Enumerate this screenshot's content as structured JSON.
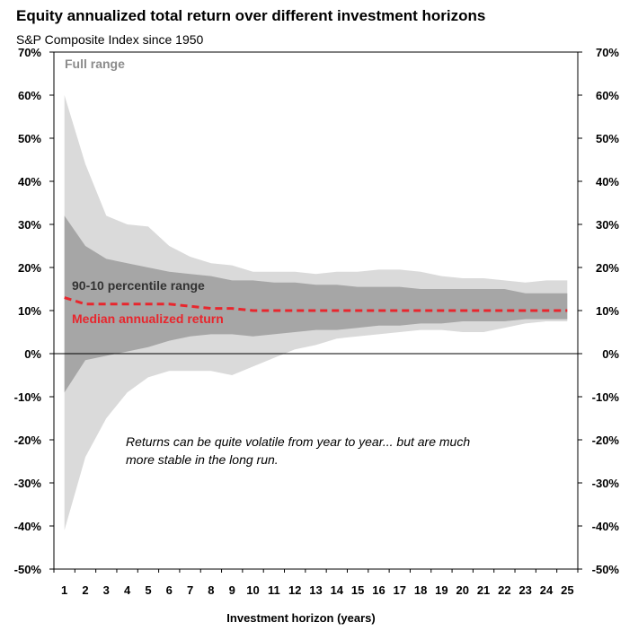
{
  "title": "Equity annualized total return over different investment horizons",
  "subtitle": "S&P Composite Index since 1950",
  "colors": {
    "full_range": "#dadada",
    "percentile_range": "#a6a6a6",
    "median": "#e8262d",
    "axis": "#000000",
    "full_range_label": "#8c8c8c",
    "percentile_label": "#333333"
  },
  "chart_data": {
    "type": "area",
    "title": "Equity annualized total return over different investment horizons",
    "subtitle": "S&P Composite Index since 1950",
    "xlabel": "Investment horizon (years)",
    "ylabel": "",
    "x": [
      1,
      2,
      3,
      4,
      5,
      6,
      7,
      8,
      9,
      10,
      11,
      12,
      13,
      14,
      15,
      16,
      17,
      18,
      19,
      20,
      21,
      22,
      23,
      24,
      25
    ],
    "ylim": [
      -50,
      70
    ],
    "yticks": [
      70,
      60,
      50,
      40,
      30,
      20,
      10,
      0,
      -10,
      -20,
      -30,
      -40,
      -50
    ],
    "ytick_labels": [
      "70%",
      "60%",
      "50%",
      "40%",
      "30%",
      "20%",
      "10%",
      "0%",
      "-10%",
      "-20%",
      "-30%",
      "-40%",
      "-50%"
    ],
    "xtick_labels": [
      "1",
      "2",
      "3",
      "4",
      "5",
      "6",
      "7",
      "8",
      "9",
      "10",
      "11",
      "12",
      "13",
      "14",
      "15",
      "16",
      "17",
      "18",
      "19",
      "20",
      "21",
      "22",
      "23",
      "24",
      "25"
    ],
    "grid": false,
    "series": [
      {
        "name": "Full range",
        "kind": "band",
        "upper": [
          60,
          44,
          32,
          30,
          29.5,
          25,
          22.5,
          21,
          20.5,
          19,
          19,
          19,
          18.5,
          19,
          19,
          19.5,
          19.5,
          19,
          18,
          17.5,
          17.5,
          17,
          16.5,
          17,
          17
        ],
        "lower": [
          -41,
          -24,
          -15,
          -9,
          -5.5,
          -4,
          -4,
          -4,
          -5,
          -3,
          -1,
          1,
          2,
          3.5,
          4,
          4.5,
          5,
          5.5,
          5.5,
          5,
          5,
          6,
          7,
          7.5,
          7.5
        ]
      },
      {
        "name": "90-10 percentile range",
        "kind": "band",
        "upper": [
          32,
          25,
          22,
          21,
          20,
          19,
          18.5,
          18,
          17,
          17,
          16.5,
          16.5,
          16,
          16,
          15.5,
          15.5,
          15.5,
          15,
          15,
          15,
          15,
          15,
          14,
          14,
          14
        ],
        "lower": [
          -9,
          -1.5,
          -0.5,
          0.5,
          1.5,
          3,
          4,
          4.5,
          4.5,
          4,
          4.5,
          5,
          5.5,
          5.5,
          6,
          6.5,
          6.5,
          7,
          7,
          7.5,
          7.5,
          7.5,
          8,
          8,
          8
        ]
      },
      {
        "name": "Median annualized return",
        "kind": "line",
        "values": [
          13,
          11.5,
          11.5,
          11.5,
          11.5,
          11.5,
          11,
          10.5,
          10.5,
          10,
          10,
          10,
          10,
          10,
          10,
          10,
          10,
          10,
          10,
          10,
          10,
          10,
          10,
          10,
          10
        ]
      }
    ],
    "annotations": [
      "Returns can be quite volatile from year to year... but are much",
      "more stable in the long run."
    ],
    "legend_placement": "inline"
  }
}
